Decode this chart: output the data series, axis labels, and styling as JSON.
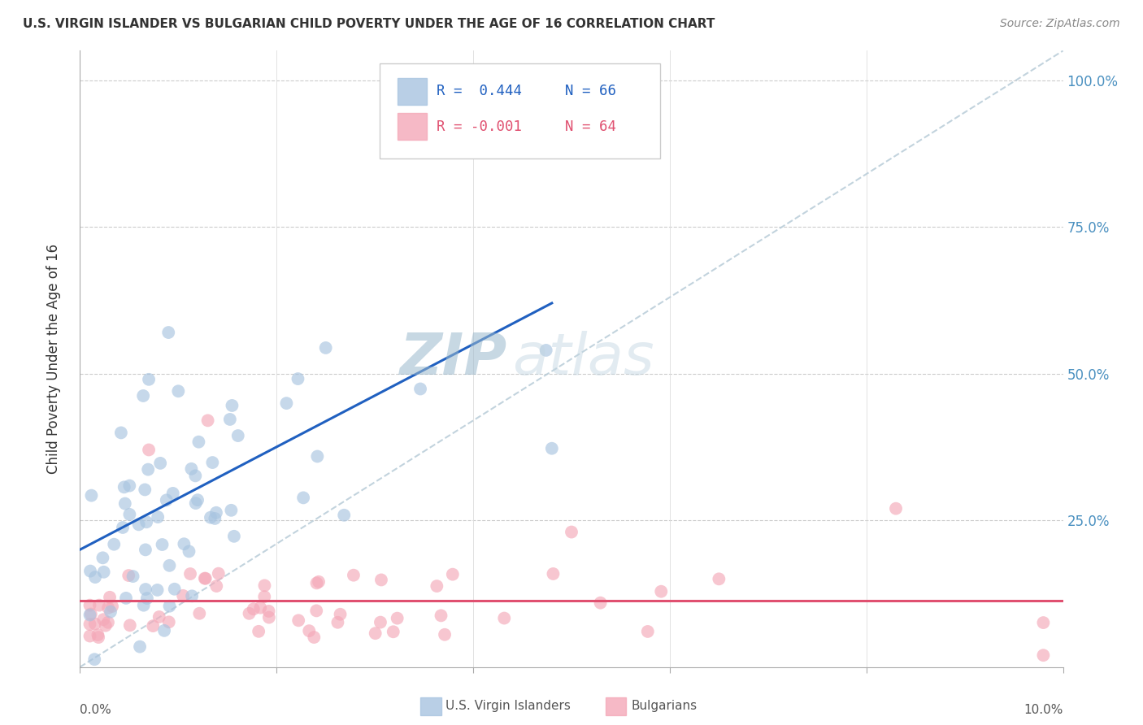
{
  "title": "U.S. VIRGIN ISLANDER VS BULGARIAN CHILD POVERTY UNDER THE AGE OF 16 CORRELATION CHART",
  "source": "Source: ZipAtlas.com",
  "ylabel": "Child Poverty Under the Age of 16",
  "xlim": [
    0.0,
    0.1
  ],
  "ylim": [
    0.0,
    1.05
  ],
  "legend_r_vi": "R =  0.444",
  "legend_n_vi": "N = 66",
  "legend_r_bg": "R = -0.001",
  "legend_n_bg": "N = 64",
  "color_vi": "#a8c4e0",
  "color_bg": "#f4a8b8",
  "color_vi_line": "#2060c0",
  "color_bg_line": "#e05070",
  "color_dashed": "#b8ccd8",
  "watermark_zip": "ZIP",
  "watermark_atlas": "atlas",
  "ytick_vals": [
    0.25,
    0.5,
    0.75,
    1.0
  ],
  "ytick_labels": [
    "25.0%",
    "50.0%",
    "75.0%",
    "100.0%"
  ]
}
